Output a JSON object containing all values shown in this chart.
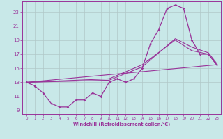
{
  "xlabel": "Windchill (Refroidissement éolien,°C)",
  "background_color": "#c8e8e8",
  "grid_color": "#b0c8c8",
  "line_color": "#993399",
  "spine_color": "#993399",
  "xlim": [
    -0.5,
    23.5
  ],
  "ylim": [
    8.5,
    24.5
  ],
  "yticks": [
    9,
    11,
    13,
    15,
    17,
    19,
    21,
    23
  ],
  "xticks": [
    0,
    1,
    2,
    3,
    4,
    5,
    6,
    7,
    8,
    9,
    10,
    11,
    12,
    13,
    14,
    15,
    16,
    17,
    18,
    19,
    20,
    21,
    22,
    23
  ],
  "main_x": [
    0,
    1,
    2,
    3,
    4,
    5,
    6,
    7,
    8,
    9,
    10,
    11,
    12,
    13,
    14,
    15,
    16,
    17,
    18,
    19,
    20,
    21,
    22,
    23
  ],
  "main_y": [
    13,
    12.5,
    11.5,
    10,
    9.5,
    9.5,
    10.5,
    10.5,
    11.5,
    11,
    13,
    13.5,
    13,
    13.5,
    15,
    18.5,
    20.5,
    23.5,
    24,
    23.5,
    19,
    17,
    17,
    15.5
  ],
  "line2_x": [
    0,
    10,
    14,
    18,
    20,
    22,
    23
  ],
  "line2_y": [
    13,
    13.5,
    15.5,
    19.0,
    17.5,
    17.0,
    15.5
  ],
  "line3_x": [
    0,
    10,
    14,
    18,
    20,
    22,
    23
  ],
  "line3_y": [
    13,
    13.3,
    15.2,
    19.2,
    18.0,
    17.2,
    15.7
  ],
  "line4_x": [
    0,
    23
  ],
  "line4_y": [
    13,
    15.5
  ]
}
